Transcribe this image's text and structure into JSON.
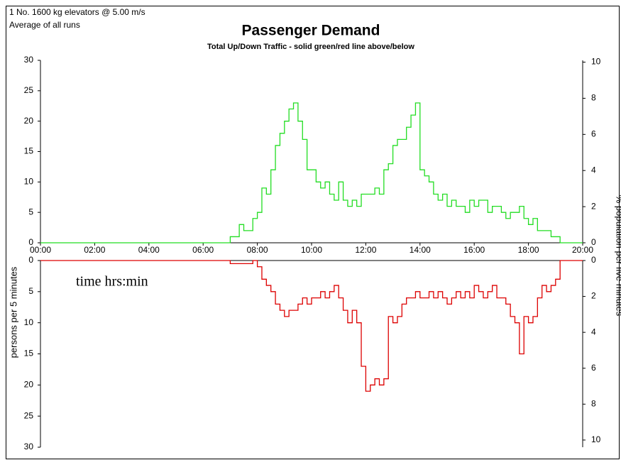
{
  "header": [
    "1 No. 1600 kg elevators @ 5.00 m/s",
    "Average of all runs"
  ],
  "title": "Passenger Demand",
  "subtitle": "Total Up/Down Traffic - solid green/red line above/below",
  "y_label": "persons per 5 minutes",
  "y2_label": "% population per five minutes",
  "annotation": "time hrs:min",
  "chart_data": [
    {
      "type": "step",
      "x": [
        0,
        420,
        430,
        440,
        450,
        460,
        470,
        480,
        490,
        500,
        510,
        520,
        530,
        540,
        550,
        560,
        570,
        580,
        590,
        600,
        610,
        620,
        630,
        640,
        650,
        660,
        670,
        680,
        690,
        700,
        710,
        720,
        730,
        740,
        750,
        760,
        770,
        780,
        790,
        800,
        810,
        820,
        830,
        840,
        850,
        860,
        870,
        880,
        890,
        900,
        910,
        920,
        930,
        940,
        950,
        960,
        970,
        980,
        990,
        1000,
        1010,
        1020,
        1030,
        1040,
        1050,
        1060,
        1070,
        1080,
        1090,
        1100,
        1110,
        1120,
        1130,
        1140,
        1150,
        1200
      ],
      "series": [
        {
          "name": "Up",
          "color": "#22dd22",
          "values": [
            0,
            1,
            1,
            3,
            2,
            2,
            4,
            5,
            9,
            8,
            12,
            16,
            18,
            20,
            22,
            23,
            20,
            17,
            12,
            12,
            10,
            9,
            10,
            8,
            7,
            10,
            7,
            6,
            7,
            6,
            8,
            8,
            8,
            9,
            8,
            12,
            13,
            16,
            17,
            17,
            19,
            21,
            23,
            12,
            11,
            10,
            8,
            7,
            8,
            6,
            7,
            6,
            6,
            5,
            7,
            6,
            7,
            7,
            5,
            6,
            6,
            5,
            4,
            5,
            5,
            6,
            4,
            3,
            4,
            2,
            2,
            2,
            1,
            1,
            0,
            0
          ]
        }
      ],
      "xlim": [
        0,
        1200
      ],
      "xticks": [
        {
          "value": 0,
          "label": "00:00"
        },
        {
          "value": 120,
          "label": "02:00"
        },
        {
          "value": 240,
          "label": "04:00"
        },
        {
          "value": 360,
          "label": "06:00"
        },
        {
          "value": 480,
          "label": "08:00"
        },
        {
          "value": 600,
          "label": "10:00"
        },
        {
          "value": 720,
          "label": "12:00"
        },
        {
          "value": 840,
          "label": "14:00"
        },
        {
          "value": 960,
          "label": "16:00"
        },
        {
          "value": 1080,
          "label": "18:00"
        },
        {
          "value": 1200,
          "label": "20:00"
        }
      ],
      "ylim": [
        0,
        30
      ],
      "yticks": [
        0,
        5,
        10,
        15,
        20,
        25,
        30
      ],
      "y2lim": [
        0,
        10.1
      ],
      "y2ticks": [
        0,
        2,
        4,
        6,
        8,
        10
      ]
    },
    {
      "type": "step",
      "x": [
        0,
        420,
        430,
        440,
        450,
        460,
        470,
        480,
        490,
        500,
        510,
        520,
        530,
        540,
        550,
        560,
        570,
        580,
        590,
        600,
        610,
        620,
        630,
        640,
        650,
        660,
        670,
        680,
        690,
        700,
        710,
        720,
        730,
        740,
        750,
        760,
        770,
        780,
        790,
        800,
        810,
        820,
        830,
        840,
        850,
        860,
        870,
        880,
        890,
        900,
        910,
        920,
        930,
        940,
        950,
        960,
        970,
        980,
        990,
        1000,
        1010,
        1020,
        1030,
        1040,
        1050,
        1060,
        1070,
        1080,
        1090,
        1100,
        1110,
        1120,
        1130,
        1140,
        1150,
        1200
      ],
      "series": [
        {
          "name": "Down",
          "color": "#dd0000",
          "values": [
            0,
            0.5,
            0.5,
            0.5,
            0.5,
            0.5,
            0,
            1,
            3,
            4,
            5,
            7,
            8,
            9,
            8,
            8,
            7,
            6,
            7,
            6,
            6,
            5,
            6,
            5,
            4,
            6,
            8,
            10,
            8,
            10,
            17,
            21,
            20,
            19,
            20,
            19,
            9,
            10,
            9,
            7,
            6,
            6,
            5,
            6,
            6,
            5,
            6,
            5,
            6,
            7,
            6,
            5,
            6,
            5,
            6,
            4,
            5,
            6,
            5,
            4,
            6,
            6,
            7,
            9,
            10,
            15,
            9,
            10,
            9,
            6,
            4,
            5,
            4,
            3,
            0,
            0
          ]
        }
      ],
      "xlim": [
        0,
        1200
      ],
      "ylim": [
        30,
        0
      ],
      "yticks": [
        0,
        5,
        10,
        15,
        20,
        25,
        30
      ],
      "y2lim": [
        10.4,
        0
      ],
      "y2ticks": [
        0,
        2,
        4,
        6,
        8,
        10
      ]
    }
  ]
}
